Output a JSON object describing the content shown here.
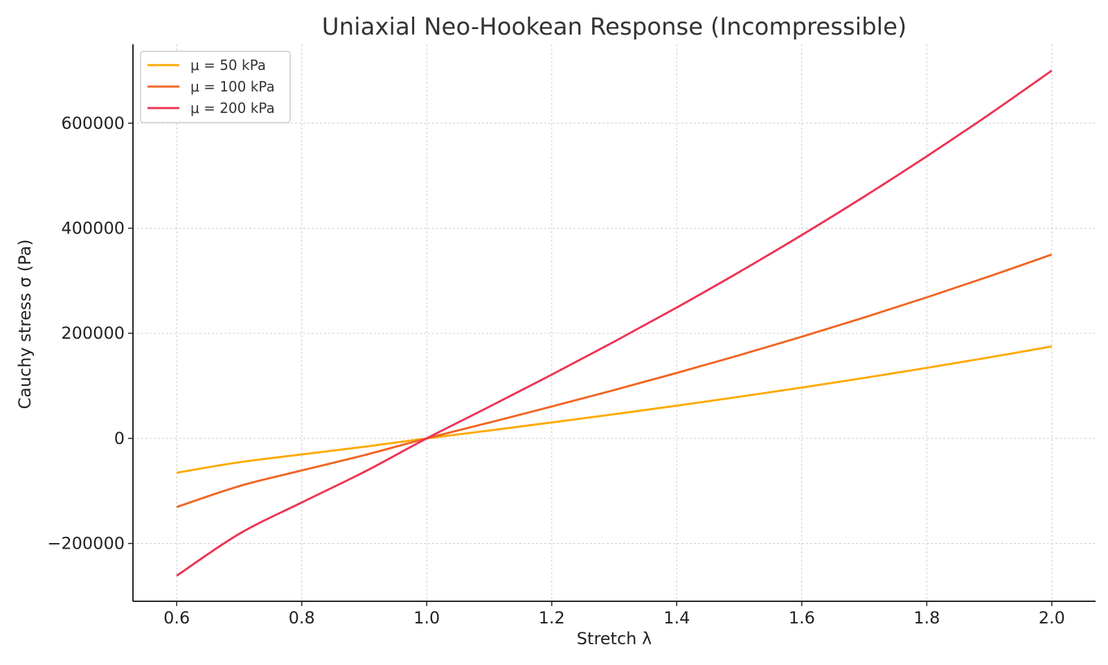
{
  "chart_data": {
    "type": "line",
    "title": "Uniaxial Neo-Hookean Response (Incompressible)",
    "xlabel": "Stretch λ",
    "ylabel": "Cauchy stress σ (Pa)",
    "xlim": [
      0.53,
      2.07
    ],
    "ylim": [
      -310000,
      750000
    ],
    "xticks": [
      0.6,
      0.8,
      1.0,
      1.2,
      1.4,
      1.6,
      1.8,
      2.0
    ],
    "xtick_labels": [
      "0.6",
      "0.8",
      "1.0",
      "1.2",
      "1.4",
      "1.6",
      "1.8",
      "2.0"
    ],
    "yticks": [
      -200000,
      0,
      200000,
      400000,
      600000
    ],
    "ytick_labels": [
      "−200000",
      "0",
      "200000",
      "400000",
      "600000"
    ],
    "grid": true,
    "legend_position": "top-left",
    "x": [
      0.6,
      0.7,
      0.8,
      0.9,
      1.0,
      1.1,
      1.2,
      1.3,
      1.4,
      1.5,
      1.6,
      1.7,
      1.8,
      1.9,
      2.0
    ],
    "series": [
      {
        "name": "μ = 50 kPa",
        "color": "#FFAA00",
        "values": [
          -65333,
          -45429,
          -30500,
          -15944,
          0,
          15045,
          30333,
          46038,
          62286,
          79167,
          96750,
          115088,
          134222,
          154184,
          175000
        ]
      },
      {
        "name": "μ = 100 kPa",
        "color": "#F26522",
        "values": [
          -130667,
          -90857,
          -61000,
          -31889,
          0,
          30091,
          60667,
          92077,
          124571,
          158333,
          193500,
          230176,
          268444,
          308368,
          350000
        ]
      },
      {
        "name": "μ = 200 kPa",
        "color": "#EE3355",
        "values": [
          -261333,
          -181714,
          -122000,
          -63778,
          0,
          60182,
          121333,
          184154,
          249143,
          316667,
          387000,
          460353,
          536889,
          616737,
          700000
        ]
      }
    ]
  }
}
